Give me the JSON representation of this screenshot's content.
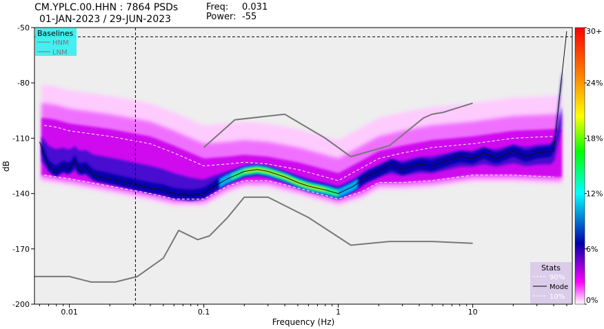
{
  "header": {
    "title_line1": "CM.YPLC.00.HHN : 7864 PSDs",
    "title_line2": "01-JAN-2023 / 29-JUN-2023",
    "freq_label": "Freq:",
    "freq_value": "0.031",
    "power_label": "Power:",
    "power_value": "-55"
  },
  "chart_data": {
    "type": "heatmap",
    "xlabel": "Frequency (Hz)",
    "ylabel": "dB",
    "x_scale": "log",
    "xlim": [
      0.0055,
      55
    ],
    "ylim": [
      -200,
      -50
    ],
    "x_ticks": [
      {
        "value": 0.01,
        "label": "0.01"
      },
      {
        "value": 0.1,
        "label": "0.1"
      },
      {
        "value": 1,
        "label": "1"
      },
      {
        "value": 10,
        "label": "10"
      }
    ],
    "y_ticks": [
      {
        "value": -50,
        "label": "-50"
      },
      {
        "value": -80,
        "label": "-80"
      },
      {
        "value": -110,
        "label": "-110"
      },
      {
        "value": -140,
        "label": "-140"
      },
      {
        "value": -170,
        "label": "-170"
      },
      {
        "value": -200,
        "label": "-200"
      }
    ],
    "colorbar": {
      "stops": [
        "#ffffff",
        "#ff00ff",
        "#0000aa",
        "#00ffff",
        "#00ff00",
        "#ffff00",
        "#ff8800",
        "#ff0000"
      ],
      "tick_labels": [
        "30+",
        "24%",
        "18%",
        "12%",
        "6%",
        "0%"
      ],
      "tick_values": [
        30,
        24,
        18,
        12,
        6,
        0
      ]
    },
    "baselines": {
      "title": "Baselines",
      "items": [
        {
          "name": "HNM"
        },
        {
          "name": "LNM"
        }
      ]
    },
    "stats": {
      "title": "Stats",
      "items": [
        {
          "name": "90%"
        },
        {
          "name": "Mode"
        },
        {
          "name": "10%"
        }
      ]
    },
    "crosshair": {
      "freq": 0.031,
      "power": -55
    },
    "hnm": [
      [
        0.1,
        -115
      ],
      [
        0.17,
        -100
      ],
      [
        0.4,
        -97
      ],
      [
        0.8,
        -110
      ],
      [
        1.24,
        -120
      ],
      [
        2.4,
        -114
      ],
      [
        4.3,
        -99
      ],
      [
        5.0,
        -97
      ],
      [
        6.0,
        -96
      ],
      [
        10,
        -91
      ]
    ],
    "lnm": [
      [
        0.0055,
        -185
      ],
      [
        0.01,
        -185
      ],
      [
        0.0145,
        -188
      ],
      [
        0.022,
        -188
      ],
      [
        0.032,
        -185
      ],
      [
        0.05,
        -175
      ],
      [
        0.065,
        -160
      ],
      [
        0.09,
        -165
      ],
      [
        0.11,
        -163
      ],
      [
        0.15,
        -153
      ],
      [
        0.2,
        -142
      ],
      [
        0.3,
        -142
      ],
      [
        0.6,
        -153
      ],
      [
        1.24,
        -168
      ],
      [
        2.4,
        -166
      ],
      [
        5,
        -166
      ],
      [
        10,
        -167
      ]
    ],
    "mode": [
      [
        0.006,
        -112
      ],
      [
        0.007,
        -125
      ],
      [
        0.008,
        -128
      ],
      [
        0.009,
        -125
      ],
      [
        0.01,
        -127
      ],
      [
        0.011,
        -122
      ],
      [
        0.012,
        -128
      ],
      [
        0.013,
        -125
      ],
      [
        0.015,
        -130
      ],
      [
        0.02,
        -132
      ],
      [
        0.03,
        -135
      ],
      [
        0.04,
        -137
      ],
      [
        0.05,
        -138
      ],
      [
        0.06,
        -140
      ],
      [
        0.08,
        -141
      ],
      [
        0.1,
        -140
      ],
      [
        0.12,
        -136
      ],
      [
        0.15,
        -132
      ],
      [
        0.2,
        -128
      ],
      [
        0.25,
        -127
      ],
      [
        0.3,
        -128
      ],
      [
        0.4,
        -131
      ],
      [
        0.5,
        -134
      ],
      [
        0.6,
        -136
      ],
      [
        0.8,
        -138
      ],
      [
        1.0,
        -140
      ],
      [
        1.3,
        -136
      ],
      [
        1.6,
        -131
      ],
      [
        2.0,
        -128
      ],
      [
        2.5,
        -124
      ],
      [
        3.0,
        -127
      ],
      [
        4.0,
        -124
      ],
      [
        5.0,
        -125
      ],
      [
        6.0,
        -123
      ],
      [
        8.0,
        -120
      ],
      [
        10,
        -121
      ],
      [
        12,
        -118
      ],
      [
        15,
        -121
      ],
      [
        20,
        -117
      ],
      [
        25,
        -120
      ],
      [
        30,
        -118
      ],
      [
        40,
        -117
      ],
      [
        50,
        -52
      ]
    ],
    "p90": [
      [
        0.0065,
        -103
      ],
      [
        0.008,
        -104
      ],
      [
        0.01,
        -106
      ],
      [
        0.02,
        -109
      ],
      [
        0.04,
        -113
      ],
      [
        0.06,
        -118
      ],
      [
        0.1,
        -125
      ],
      [
        0.15,
        -124
      ],
      [
        0.2,
        -123
      ],
      [
        0.3,
        -124
      ],
      [
        0.5,
        -127
      ],
      [
        0.8,
        -131
      ],
      [
        1.0,
        -133
      ],
      [
        1.5,
        -126
      ],
      [
        2.0,
        -121
      ],
      [
        3.0,
        -118
      ],
      [
        5.0,
        -115
      ],
      [
        10,
        -113
      ],
      [
        20,
        -110
      ],
      [
        40,
        -109
      ]
    ],
    "p10": [
      [
        0.0065,
        -130
      ],
      [
        0.01,
        -132
      ],
      [
        0.02,
        -136
      ],
      [
        0.04,
        -140
      ],
      [
        0.06,
        -143
      ],
      [
        0.1,
        -143
      ],
      [
        0.15,
        -136
      ],
      [
        0.2,
        -133
      ],
      [
        0.3,
        -133
      ],
      [
        0.5,
        -137
      ],
      [
        0.8,
        -141
      ],
      [
        1.0,
        -143
      ],
      [
        1.5,
        -139
      ],
      [
        2.0,
        -134
      ],
      [
        3.0,
        -134
      ],
      [
        5.0,
        -133
      ],
      [
        10,
        -130
      ],
      [
        20,
        -130
      ],
      [
        40,
        -131
      ]
    ]
  }
}
